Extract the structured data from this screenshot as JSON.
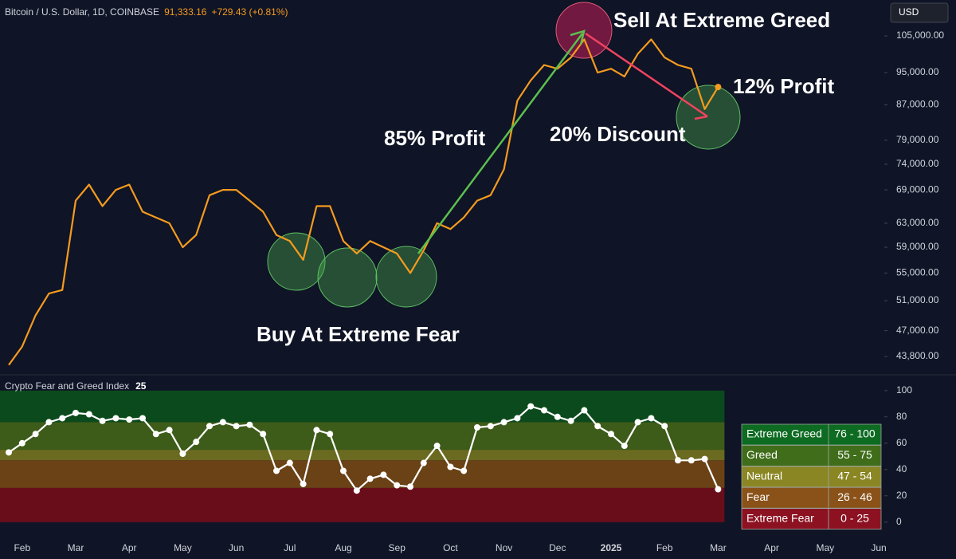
{
  "chart_data": [
    {
      "type": "line",
      "title": "Bitcoin / U.S. Dollar, 1D, COINBASE",
      "last_price": "91,333.16",
      "change": "+729.43 (+0.81%)",
      "currency": "USD",
      "annotations": [
        "Sell At Extreme Greed",
        "12% Profit",
        "85% Profit",
        "20% Discount",
        "Buy At Extreme Fear"
      ],
      "color": "#f59b1f",
      "log": true,
      "categories": [
        null,
        "Feb",
        null,
        null,
        null,
        "Mar",
        null,
        null,
        null,
        "Apr",
        null,
        null,
        null,
        "May",
        null,
        null,
        null,
        "Jun",
        null,
        null,
        null,
        "Jul",
        null,
        null,
        null,
        "Aug",
        null,
        null,
        null,
        "Sep",
        null,
        null,
        null,
        "Oct",
        null,
        null,
        null,
        "Nov",
        null,
        null,
        null,
        "Dec",
        null,
        null,
        null,
        "2025",
        null,
        null,
        null,
        "Feb",
        null,
        null,
        null,
        "Mar",
        null,
        null,
        null,
        "Apr",
        null,
        null,
        null,
        "May",
        null,
        null,
        null,
        "Jun"
      ],
      "values": [
        42800,
        45000,
        49000,
        52000,
        52500,
        67000,
        70000,
        66000,
        69000,
        70000,
        65000,
        64000,
        63000,
        59000,
        61000,
        68000,
        69000,
        69000,
        67000,
        65000,
        61000,
        60000,
        57000,
        66000,
        66000,
        60000,
        58000,
        60000,
        59000,
        58000,
        55000,
        58500,
        63000,
        62000,
        64000,
        67000,
        68000,
        73000,
        88000,
        93000,
        97000,
        96000,
        99000,
        104000,
        95000,
        96000,
        94000,
        100000,
        104000,
        99000,
        97000,
        96000,
        86000,
        91333.16,
        null,
        null,
        null,
        null,
        null,
        null,
        null,
        null,
        null,
        null,
        null,
        null
      ],
      "ylim": [
        41850,
        115800
      ],
      "yticks": [
        {
          "value": 43800,
          "label": "43,800.00"
        },
        {
          "value": 47000,
          "label": "47,000.00"
        },
        {
          "value": 51000,
          "label": "51,000.00"
        },
        {
          "value": 55000,
          "label": "55,000.00"
        },
        {
          "value": 59000,
          "label": "59,000.00"
        },
        {
          "value": 63000,
          "label": "63,000.00"
        },
        {
          "value": 69000,
          "label": "69,000.00"
        },
        {
          "value": 74000,
          "label": "74,000.00"
        },
        {
          "value": 79000,
          "label": "79,000.00"
        },
        {
          "value": 87000,
          "label": "87,000.00"
        },
        {
          "value": 95000,
          "label": "95,000.00"
        },
        {
          "value": 105000,
          "label": "105,000.00"
        }
      ]
    },
    {
      "type": "line",
      "title": "Crypto Fear and Greed Index",
      "color": "#ffffff",
      "values": [
        53,
        60,
        67,
        76,
        79,
        83,
        82,
        77,
        79,
        78,
        79,
        67,
        70,
        52,
        61,
        73,
        76,
        73,
        74,
        67,
        39,
        45,
        29,
        70,
        67,
        39,
        24,
        33,
        36,
        28,
        27,
        45,
        58,
        42,
        39,
        72,
        73,
        76,
        79,
        88,
        85,
        80,
        77,
        85,
        73,
        67,
        58,
        76,
        79,
        73,
        47,
        47,
        48,
        25,
        null,
        null,
        null,
        null,
        null,
        null,
        null,
        null,
        null,
        null,
        null,
        null
      ],
      "ylim": [
        -8,
        112
      ],
      "yticks": [
        0,
        20,
        40,
        60,
        80,
        100
      ],
      "zones": [
        {
          "name": "Extreme Greed",
          "range": "76 - 100",
          "from": 76,
          "to": 100,
          "color": "#0b4a1c",
          "legend_color": "#0d6b22"
        },
        {
          "name": "Greed",
          "range": "55 - 75",
          "from": 55,
          "to": 75,
          "color": "#3d5c19",
          "legend_color": "#3f6d1a"
        },
        {
          "name": "Neutral",
          "range": "47 - 54",
          "from": 47,
          "to": 54,
          "color": "#6a6a20",
          "legend_color": "#8a8624"
        },
        {
          "name": "Fear",
          "range": "26 - 46",
          "from": 26,
          "to": 46,
          "color": "#6b4216",
          "legend_color": "#8a5219"
        },
        {
          "name": "Extreme Fear",
          "range": "0 - 25",
          "from": 0,
          "to": 25,
          "color": "#6a0d1a",
          "legend_color": "#8c1222"
        }
      ]
    }
  ]
}
